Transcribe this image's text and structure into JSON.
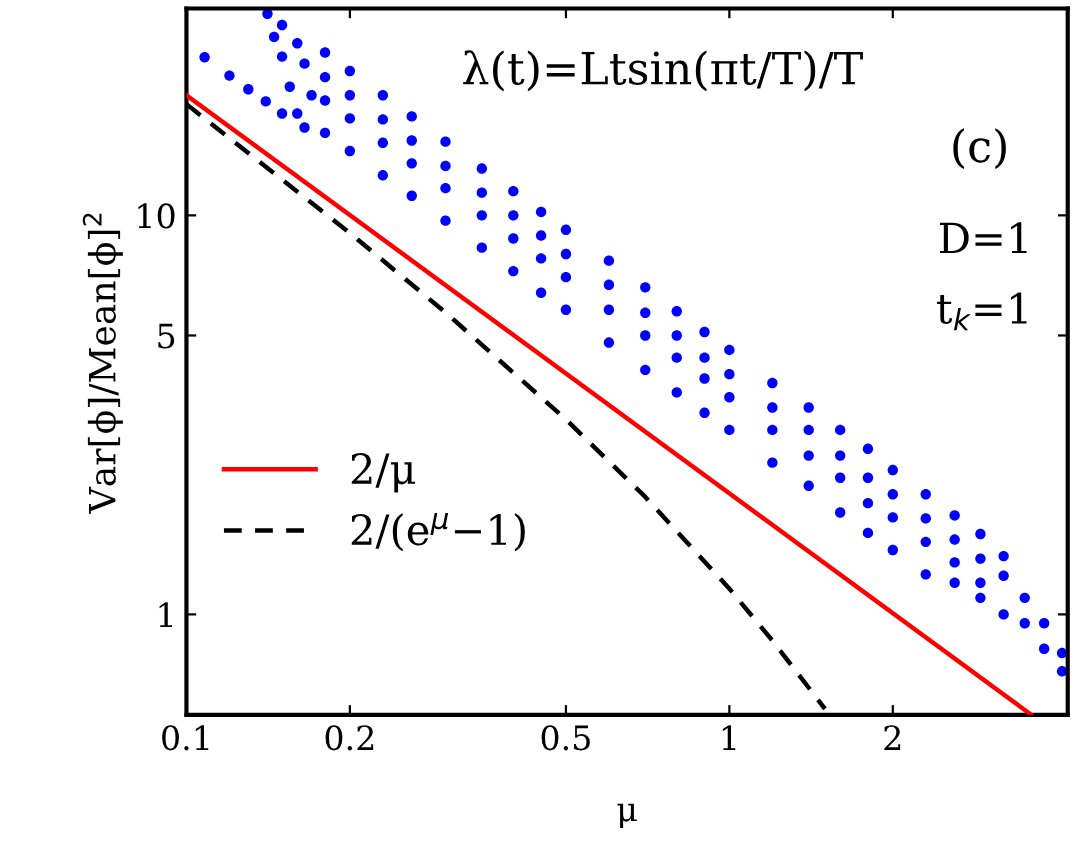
{
  "chart_data": {
    "type": "scatter",
    "log": "xy",
    "xlabel": "μ",
    "ylabel": "Var[ϕ]/Mean[ϕ]$^{2}$",
    "xlim": [
      0.1,
      4.2
    ],
    "ylim": [
      0.56,
      33
    ],
    "xticks": [
      0.1,
      0.2,
      0.5,
      1,
      2
    ],
    "yticks": [
      1,
      5,
      10
    ],
    "grid": false,
    "legend": "left",
    "annotations": [
      "λ(t)=Ltsin(πt/T)/T",
      "(c)",
      "D=1",
      "t$_{k}$=1"
    ],
    "series": [
      {
        "color": "#0000ff",
        "marker": "circle",
        "x": [
          0.108,
          0.12,
          0.13,
          0.14,
          0.15,
          0.165,
          0.141,
          0.145,
          0.15,
          0.155,
          0.16,
          0.15,
          0.16,
          0.165,
          0.17,
          0.18,
          0.18,
          0.18,
          0.18,
          0.2,
          0.2,
          0.2,
          0.2,
          0.23,
          0.23,
          0.23,
          0.23,
          0.26,
          0.26,
          0.26,
          0.26,
          0.3,
          0.3,
          0.3,
          0.3,
          0.35,
          0.35,
          0.35,
          0.35,
          0.4,
          0.4,
          0.4,
          0.4,
          0.45,
          0.45,
          0.45,
          0.45,
          0.5,
          0.5,
          0.5,
          0.5,
          0.6,
          0.6,
          0.6,
          0.6,
          0.7,
          0.7,
          0.7,
          0.7,
          0.8,
          0.8,
          0.8,
          0.8,
          0.9,
          0.9,
          0.9,
          0.9,
          1.0,
          1.0,
          1.0,
          1.0,
          1.2,
          1.2,
          1.2,
          1.2,
          1.4,
          1.4,
          1.4,
          1.4,
          1.6,
          1.6,
          1.6,
          1.6,
          1.8,
          1.8,
          1.8,
          1.8,
          2.0,
          2.0,
          2.0,
          2.0,
          2.3,
          2.3,
          2.3,
          2.3,
          2.6,
          2.6,
          2.6,
          2.6,
          2.9,
          2.9,
          2.9,
          2.9,
          3.2,
          3.2,
          3.2,
          3.5,
          3.5,
          3.8,
          3.8,
          4.1,
          4.1
        ],
        "values": [
          24.9,
          22.4,
          20.7,
          19.3,
          18.0,
          16.6,
          32,
          28,
          25,
          21,
          18,
          30,
          27,
          24,
          20,
          16.1,
          19.4,
          22.2,
          25.6,
          14.5,
          17.5,
          20,
          23,
          12.6,
          15.2,
          17.4,
          20,
          11.2,
          13.5,
          15.4,
          17.7,
          9.7,
          11.7,
          13.3,
          15.3,
          8.3,
          10,
          11.4,
          13.1,
          7.25,
          8.75,
          10,
          11.5,
          6.4,
          7.8,
          8.9,
          10.2,
          5.8,
          7,
          8,
          9.2,
          4.8,
          5.8,
          6.7,
          7.7,
          4.1,
          5,
          5.7,
          6.6,
          3.6,
          4.4,
          5,
          5.75,
          3.2,
          3.9,
          4.4,
          5.1,
          2.9,
          3.5,
          4.0,
          4.6,
          2.4,
          2.9,
          3.3,
          3.8,
          2.1,
          2.5,
          2.9,
          3.3,
          1.8,
          2.2,
          2.5,
          2.9,
          1.6,
          1.9,
          2.2,
          2.6,
          1.45,
          1.75,
          2.0,
          2.3,
          1.26,
          1.52,
          1.74,
          2.0,
          1.2,
          1.35,
          1.54,
          1.77,
          1.1,
          1.2,
          1.38,
          1.59,
          1.0,
          1.25,
          1.4,
          0.95,
          1.1,
          0.82,
          0.95,
          0.72,
          0.8
        ]
      },
      {
        "type": "line",
        "name": "2/μ",
        "color": "#ff0000",
        "line_style": "solid",
        "x": [
          0.1,
          3.6
        ],
        "values": [
          20,
          0.56
        ]
      },
      {
        "type": "line",
        "name": "2/(e$^{μ}$−1)",
        "color": "#000000",
        "line_style": "dashed",
        "x": [
          0.1,
          0.2,
          0.3,
          0.5,
          0.7,
          1,
          1.2,
          1.5
        ],
        "values": [
          19.0,
          9.03,
          5.71,
          3.08,
          1.97,
          1.16,
          0.86,
          0.58
        ]
      }
    ]
  }
}
